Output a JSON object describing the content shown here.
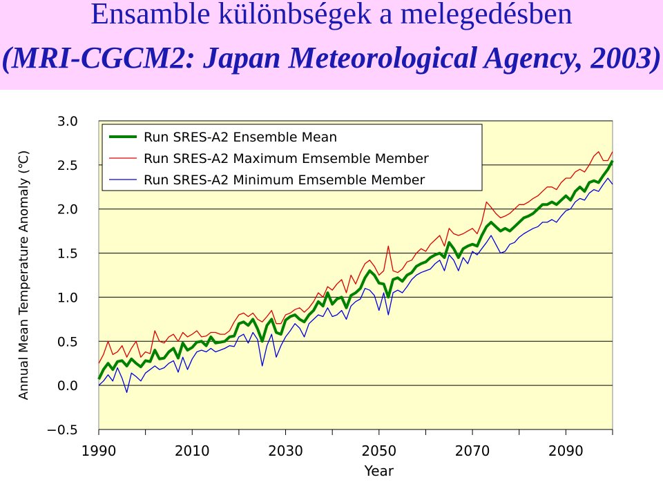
{
  "header": {
    "title": "Ensamble különbségek a melegedésben",
    "subtitle": "(MRI-CGCM2: Japan Meteorological Agency, 2003)"
  },
  "colors": {
    "header_bg": "#ffd2ff",
    "title_text": "#1a1ab0",
    "plot_bg": "#ffffcc",
    "gridline": "#000000",
    "mean": "#008000",
    "max": "#dd0000",
    "min": "#0000dd"
  },
  "chart_data": {
    "type": "line",
    "xlabel": "Year",
    "ylabel": "Annual Mean Temperature Anomaly (℃)",
    "xlim": [
      1990,
      2100
    ],
    "ylim": [
      -0.5,
      3.0
    ],
    "xticks": [
      "1990",
      "2010",
      "2030",
      "2050",
      "2070",
      "2090"
    ],
    "yticks": [
      "3.0",
      "2.5",
      "2.0",
      "1.5",
      "1.0",
      "0.5",
      "0.0",
      "−0.5"
    ],
    "grid": "horizontal",
    "legend_position": "top-left",
    "x": [
      1990,
      1991,
      1992,
      1993,
      1994,
      1995,
      1996,
      1997,
      1998,
      1999,
      2000,
      2001,
      2002,
      2003,
      2004,
      2005,
      2006,
      2007,
      2008,
      2009,
      2010,
      2011,
      2012,
      2013,
      2014,
      2015,
      2016,
      2017,
      2018,
      2019,
      2020,
      2021,
      2022,
      2023,
      2024,
      2025,
      2026,
      2027,
      2028,
      2029,
      2030,
      2031,
      2032,
      2033,
      2034,
      2035,
      2036,
      2037,
      2038,
      2039,
      2040,
      2041,
      2042,
      2043,
      2044,
      2045,
      2046,
      2047,
      2048,
      2049,
      2050,
      2051,
      2052,
      2053,
      2054,
      2055,
      2056,
      2057,
      2058,
      2059,
      2060,
      2061,
      2062,
      2063,
      2064,
      2065,
      2066,
      2067,
      2068,
      2069,
      2070,
      2071,
      2072,
      2073,
      2074,
      2075,
      2076,
      2077,
      2078,
      2079,
      2080,
      2081,
      2082,
      2083,
      2084,
      2085,
      2086,
      2087,
      2088,
      2089,
      2090,
      2091,
      2092,
      2093,
      2094,
      2095,
      2096,
      2097,
      2098,
      2099,
      2100
    ],
    "series": [
      {
        "name": "Run SRES-A2 Ensemble Mean",
        "color": "#008000",
        "values": [
          0.07,
          0.18,
          0.25,
          0.18,
          0.27,
          0.28,
          0.22,
          0.3,
          0.25,
          0.21,
          0.28,
          0.27,
          0.4,
          0.3,
          0.31,
          0.38,
          0.42,
          0.31,
          0.48,
          0.4,
          0.43,
          0.49,
          0.5,
          0.45,
          0.55,
          0.48,
          0.49,
          0.5,
          0.55,
          0.56,
          0.7,
          0.72,
          0.68,
          0.75,
          0.64,
          0.5,
          0.68,
          0.75,
          0.6,
          0.58,
          0.74,
          0.78,
          0.8,
          0.75,
          0.72,
          0.8,
          0.85,
          0.95,
          0.9,
          1.05,
          0.92,
          0.98,
          1.0,
          0.88,
          1.02,
          1.05,
          1.1,
          1.22,
          1.3,
          1.25,
          1.16,
          1.15,
          1.0,
          1.2,
          1.22,
          1.18,
          1.25,
          1.28,
          1.35,
          1.38,
          1.4,
          1.45,
          1.48,
          1.5,
          1.45,
          1.62,
          1.55,
          1.45,
          1.55,
          1.58,
          1.6,
          1.58,
          1.7,
          1.8,
          1.85,
          1.8,
          1.75,
          1.78,
          1.75,
          1.8,
          1.85,
          1.9,
          1.92,
          1.95,
          2.0,
          2.05,
          2.05,
          2.08,
          2.05,
          2.1,
          2.15,
          2.1,
          2.2,
          2.25,
          2.2,
          2.3,
          2.32,
          2.3,
          2.38,
          2.45,
          2.55
        ]
      },
      {
        "name": "Run SRES-A2 Maximum Emsemble Member",
        "color": "#dd0000",
        "values": [
          0.25,
          0.35,
          0.5,
          0.35,
          0.38,
          0.45,
          0.32,
          0.42,
          0.5,
          0.32,
          0.38,
          0.36,
          0.62,
          0.5,
          0.48,
          0.55,
          0.58,
          0.5,
          0.6,
          0.55,
          0.58,
          0.62,
          0.55,
          0.56,
          0.6,
          0.6,
          0.58,
          0.58,
          0.62,
          0.72,
          0.8,
          0.82,
          0.78,
          0.82,
          0.75,
          0.72,
          0.78,
          0.85,
          0.7,
          0.7,
          0.8,
          0.82,
          0.86,
          0.88,
          0.83,
          0.88,
          0.95,
          1.05,
          1.0,
          1.12,
          1.08,
          1.15,
          1.2,
          1.05,
          1.25,
          1.15,
          1.28,
          1.38,
          1.42,
          1.35,
          1.25,
          1.3,
          1.58,
          1.3,
          1.28,
          1.32,
          1.4,
          1.42,
          1.5,
          1.55,
          1.52,
          1.6,
          1.65,
          1.7,
          1.58,
          1.78,
          1.72,
          1.7,
          1.72,
          1.75,
          1.78,
          1.72,
          1.85,
          2.08,
          2.02,
          1.95,
          1.9,
          1.92,
          1.95,
          2.0,
          2.05,
          2.05,
          2.08,
          2.12,
          2.15,
          2.2,
          2.25,
          2.25,
          2.22,
          2.3,
          2.35,
          2.35,
          2.42,
          2.45,
          2.42,
          2.5,
          2.6,
          2.65,
          2.55,
          2.55,
          2.65
        ]
      },
      {
        "name": "Run SRES-A2 Minimum Emsemble Member",
        "color": "#0000dd",
        "values": [
          0.0,
          0.05,
          0.12,
          0.05,
          0.2,
          0.08,
          -0.08,
          0.14,
          0.1,
          0.05,
          0.14,
          0.18,
          0.22,
          0.18,
          0.2,
          0.25,
          0.28,
          0.15,
          0.32,
          0.18,
          0.3,
          0.38,
          0.4,
          0.38,
          0.42,
          0.38,
          0.4,
          0.42,
          0.45,
          0.44,
          0.55,
          0.58,
          0.48,
          0.6,
          0.52,
          0.22,
          0.45,
          0.58,
          0.32,
          0.45,
          0.55,
          0.62,
          0.7,
          0.65,
          0.55,
          0.7,
          0.75,
          0.8,
          0.78,
          0.88,
          0.78,
          0.8,
          0.85,
          0.75,
          0.9,
          0.95,
          0.98,
          1.1,
          1.08,
          1.02,
          0.85,
          1.05,
          0.8,
          1.05,
          1.08,
          1.05,
          1.12,
          1.2,
          1.25,
          1.28,
          1.3,
          1.32,
          1.38,
          1.42,
          1.3,
          1.48,
          1.42,
          1.3,
          1.45,
          1.38,
          1.52,
          1.48,
          1.55,
          1.62,
          1.7,
          1.6,
          1.5,
          1.52,
          1.6,
          1.62,
          1.68,
          1.72,
          1.75,
          1.78,
          1.8,
          1.85,
          1.85,
          1.88,
          1.85,
          1.92,
          1.98,
          2.0,
          2.08,
          2.12,
          2.1,
          2.18,
          2.22,
          2.2,
          2.28,
          2.35,
          2.28
        ]
      }
    ]
  }
}
